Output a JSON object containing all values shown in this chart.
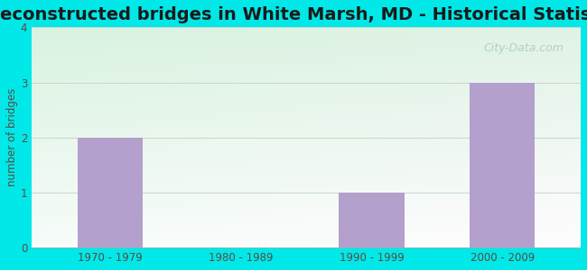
{
  "title": "Reconstructed bridges in White Marsh, MD - Historical Statistics",
  "categories": [
    "1970 - 1979",
    "1980 - 1989",
    "1990 - 1999",
    "2000 - 2009"
  ],
  "values": [
    2,
    0,
    1,
    3
  ],
  "bar_color": "#b3a0cc",
  "ylabel": "number of bridges",
  "ylim": [
    0,
    4
  ],
  "yticks": [
    0,
    1,
    2,
    3,
    4
  ],
  "background_outer": "#00e8e8",
  "background_plot_topleft": "#d4edd8",
  "background_plot_topright": "#d8eee8",
  "background_plot_bottom": "#e8f5ee",
  "title_fontsize": 14,
  "title_color": "#1a1a1a",
  "axis_label_color": "#5a4a42",
  "tick_label_color": "#5a4a42",
  "grid_color": "#c8d8c8",
  "watermark": "City-Data.com",
  "watermark_color": "#aac8c8"
}
